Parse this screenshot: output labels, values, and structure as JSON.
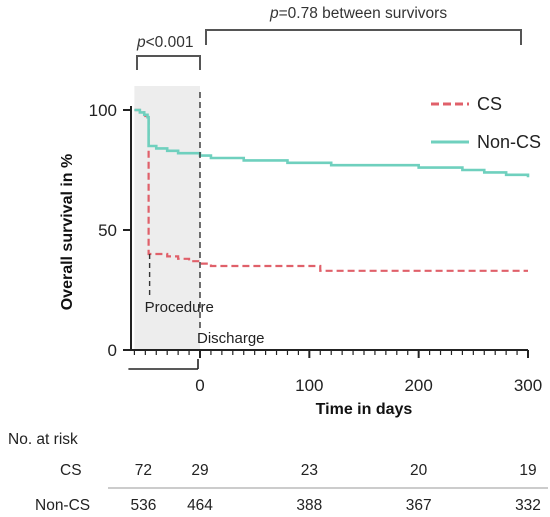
{
  "chart_data": {
    "type": "line",
    "subtype": "kaplan-meier",
    "xlabel": "Time in days",
    "ylabel": "Overall survival in %",
    "xlim": [
      -60,
      300
    ],
    "ylim": [
      0,
      100
    ],
    "x_ticks": [
      0,
      100,
      200,
      300
    ],
    "y_ticks": [
      0,
      50,
      100
    ],
    "grid": false,
    "legend_position": "top-right",
    "shaded_region": [
      -60,
      0
    ],
    "series": [
      {
        "name": "CS",
        "color": "#e0606a",
        "dash": true,
        "points": [
          [
            -60,
            100
          ],
          [
            -55,
            99
          ],
          [
            -51,
            98
          ],
          [
            -50,
            97
          ],
          [
            -47,
            40
          ],
          [
            -40,
            40
          ],
          [
            -30,
            39
          ],
          [
            -20,
            38
          ],
          [
            -10,
            37
          ],
          [
            0,
            36
          ],
          [
            10,
            35
          ],
          [
            110,
            35
          ],
          [
            110,
            33
          ],
          [
            300,
            33
          ]
        ]
      },
      {
        "name": "Non-CS",
        "color": "#6fd0be",
        "dash": false,
        "points": [
          [
            -60,
            100
          ],
          [
            -55,
            99
          ],
          [
            -51,
            98
          ],
          [
            -48,
            97
          ],
          [
            -47,
            85
          ],
          [
            -40,
            84
          ],
          [
            -30,
            83
          ],
          [
            -20,
            82
          ],
          [
            -10,
            82
          ],
          [
            0,
            81
          ],
          [
            10,
            80
          ],
          [
            40,
            79
          ],
          [
            80,
            78
          ],
          [
            120,
            77
          ],
          [
            160,
            77
          ],
          [
            200,
            76
          ],
          [
            240,
            75
          ],
          [
            260,
            74
          ],
          [
            280,
            73
          ],
          [
            300,
            72
          ]
        ]
      }
    ],
    "annotations": [
      {
        "label": "Procedure",
        "x": -47
      },
      {
        "label": "Discharge",
        "x": 0
      }
    ],
    "pvalues": [
      {
        "italic": "p",
        "rest": "<0.001"
      },
      {
        "italic": "p",
        "rest": "=0.78 between survivors"
      }
    ],
    "risk_table": {
      "title": "No. at risk",
      "rows": [
        {
          "label": "CS",
          "values": [
            72,
            29,
            23,
            20,
            19
          ]
        },
        {
          "label": "Non-CS",
          "values": [
            536,
            464,
            388,
            367,
            332
          ]
        }
      ]
    }
  }
}
